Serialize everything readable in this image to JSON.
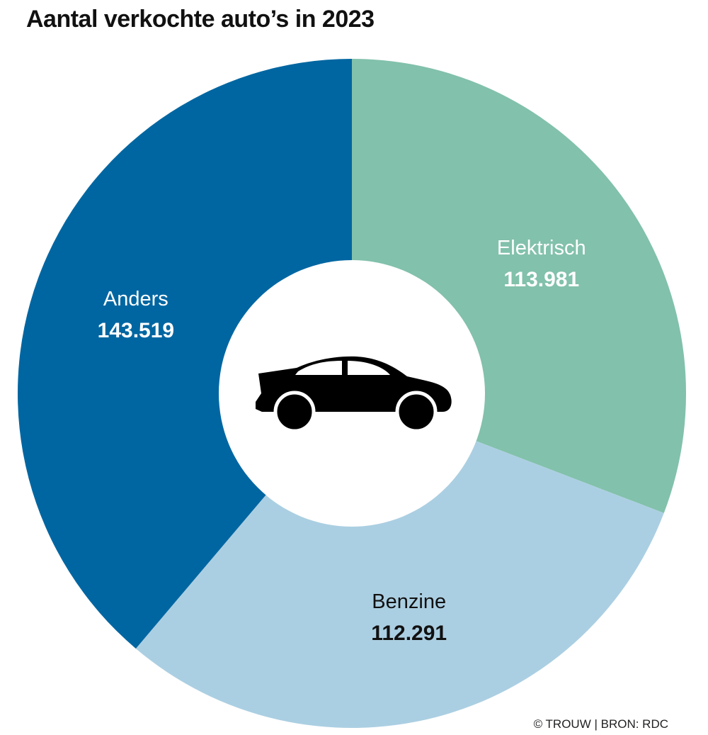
{
  "chart_data": {
    "type": "pie",
    "title": "Aantal verkochte auto’s in 2023",
    "categories": [
      "Elektrisch",
      "Benzine",
      "Anders"
    ],
    "values": [
      113981,
      112291,
      143519
    ],
    "value_labels": [
      "113.981",
      "112.291",
      "143.519"
    ],
    "colors": [
      "#82c1ab",
      "#abcfe2",
      "#0066a1"
    ],
    "label_colors": [
      "#ffffff",
      "#111111",
      "#ffffff"
    ],
    "center_icon": "car-icon",
    "credit": "© TROUW | BRON: RDC"
  }
}
